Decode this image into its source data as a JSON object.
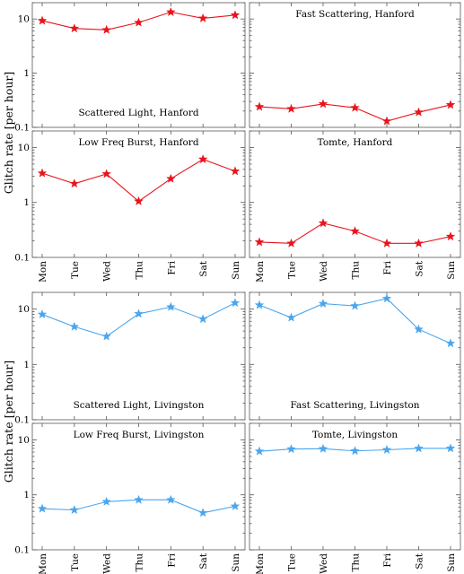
{
  "figure": {
    "groups": [
      {
        "ylabel": "Glitch rate [per hour]"
      },
      {
        "ylabel": "Glitch rate [per hour]"
      }
    ],
    "ytick_labels": [
      "0.1",
      "1",
      "10"
    ],
    "colors": {
      "hanford": "#e8141c",
      "livingston": "#4aa6ee"
    }
  },
  "chart_data": [
    {
      "type": "line",
      "title": "Scattered Light, Hanford",
      "label_pos": "bottom",
      "categories": [
        "Mon",
        "Tue",
        "Wed",
        "Thu",
        "Fri",
        "Sat",
        "Sun"
      ],
      "values": [
        9.3,
        6.7,
        6.3,
        8.6,
        13.4,
        10.3,
        11.8
      ],
      "yscale": "log",
      "ylim": [
        0.1,
        20
      ],
      "color": "#e8141c",
      "marker": "star"
    },
    {
      "type": "line",
      "title": "Fast Scattering, Hanford",
      "label_pos": "top",
      "categories": [
        "Mon",
        "Tue",
        "Wed",
        "Thu",
        "Fri",
        "Sat",
        "Sun"
      ],
      "values": [
        0.24,
        0.22,
        0.27,
        0.23,
        0.13,
        0.19,
        0.26
      ],
      "yscale": "log",
      "ylim": [
        0.1,
        20
      ],
      "color": "#e8141c",
      "marker": "star"
    },
    {
      "type": "line",
      "title": "Low Freq Burst, Hanford",
      "label_pos": "top",
      "categories": [
        "Mon",
        "Tue",
        "Wed",
        "Thu",
        "Fri",
        "Sat",
        "Sun"
      ],
      "values": [
        3.4,
        2.2,
        3.3,
        1.05,
        2.7,
        6.1,
        3.7
      ],
      "yscale": "log",
      "ylim": [
        0.1,
        20
      ],
      "color": "#e8141c",
      "marker": "star"
    },
    {
      "type": "line",
      "title": "Tomte, Hanford",
      "label_pos": "top",
      "categories": [
        "Mon",
        "Tue",
        "Wed",
        "Thu",
        "Fri",
        "Sat",
        "Sun"
      ],
      "values": [
        0.19,
        0.18,
        0.42,
        0.3,
        0.18,
        0.18,
        0.24
      ],
      "yscale": "log",
      "ylim": [
        0.1,
        20
      ],
      "color": "#e8141c",
      "marker": "star"
    },
    {
      "type": "line",
      "title": "Scattered Light, Livingston",
      "label_pos": "bottom",
      "categories": [
        "Mon",
        "Tue",
        "Wed",
        "Thu",
        "Fri",
        "Sat",
        "Sun"
      ],
      "values": [
        8.0,
        4.8,
        3.2,
        8.2,
        10.9,
        6.6,
        12.9
      ],
      "yscale": "log",
      "ylim": [
        0.1,
        20
      ],
      "color": "#4aa6ee",
      "marker": "star"
    },
    {
      "type": "line",
      "title": "Fast Scattering, Livingston",
      "label_pos": "bottom",
      "categories": [
        "Mon",
        "Tue",
        "Wed",
        "Thu",
        "Fri",
        "Sat",
        "Sun"
      ],
      "values": [
        11.8,
        7.0,
        12.5,
        11.4,
        15.5,
        4.3,
        2.4
      ],
      "yscale": "log",
      "ylim": [
        0.1,
        20
      ],
      "color": "#4aa6ee",
      "marker": "star"
    },
    {
      "type": "line",
      "title": "Low Freq Burst, Livingston",
      "label_pos": "top",
      "categories": [
        "Mon",
        "Tue",
        "Wed",
        "Thu",
        "Fri",
        "Sat",
        "Sun"
      ],
      "values": [
        0.56,
        0.53,
        0.75,
        0.81,
        0.81,
        0.47,
        0.62
      ],
      "yscale": "log",
      "ylim": [
        0.1,
        20
      ],
      "color": "#4aa6ee",
      "marker": "star"
    },
    {
      "type": "line",
      "title": "Tomte, Livingston",
      "label_pos": "top",
      "categories": [
        "Mon",
        "Tue",
        "Wed",
        "Thu",
        "Fri",
        "Sat",
        "Sun"
      ],
      "values": [
        6.2,
        6.8,
        6.9,
        6.3,
        6.6,
        7.0,
        7.0
      ],
      "yscale": "log",
      "ylim": [
        0.1,
        20
      ],
      "color": "#4aa6ee",
      "marker": "star"
    }
  ]
}
